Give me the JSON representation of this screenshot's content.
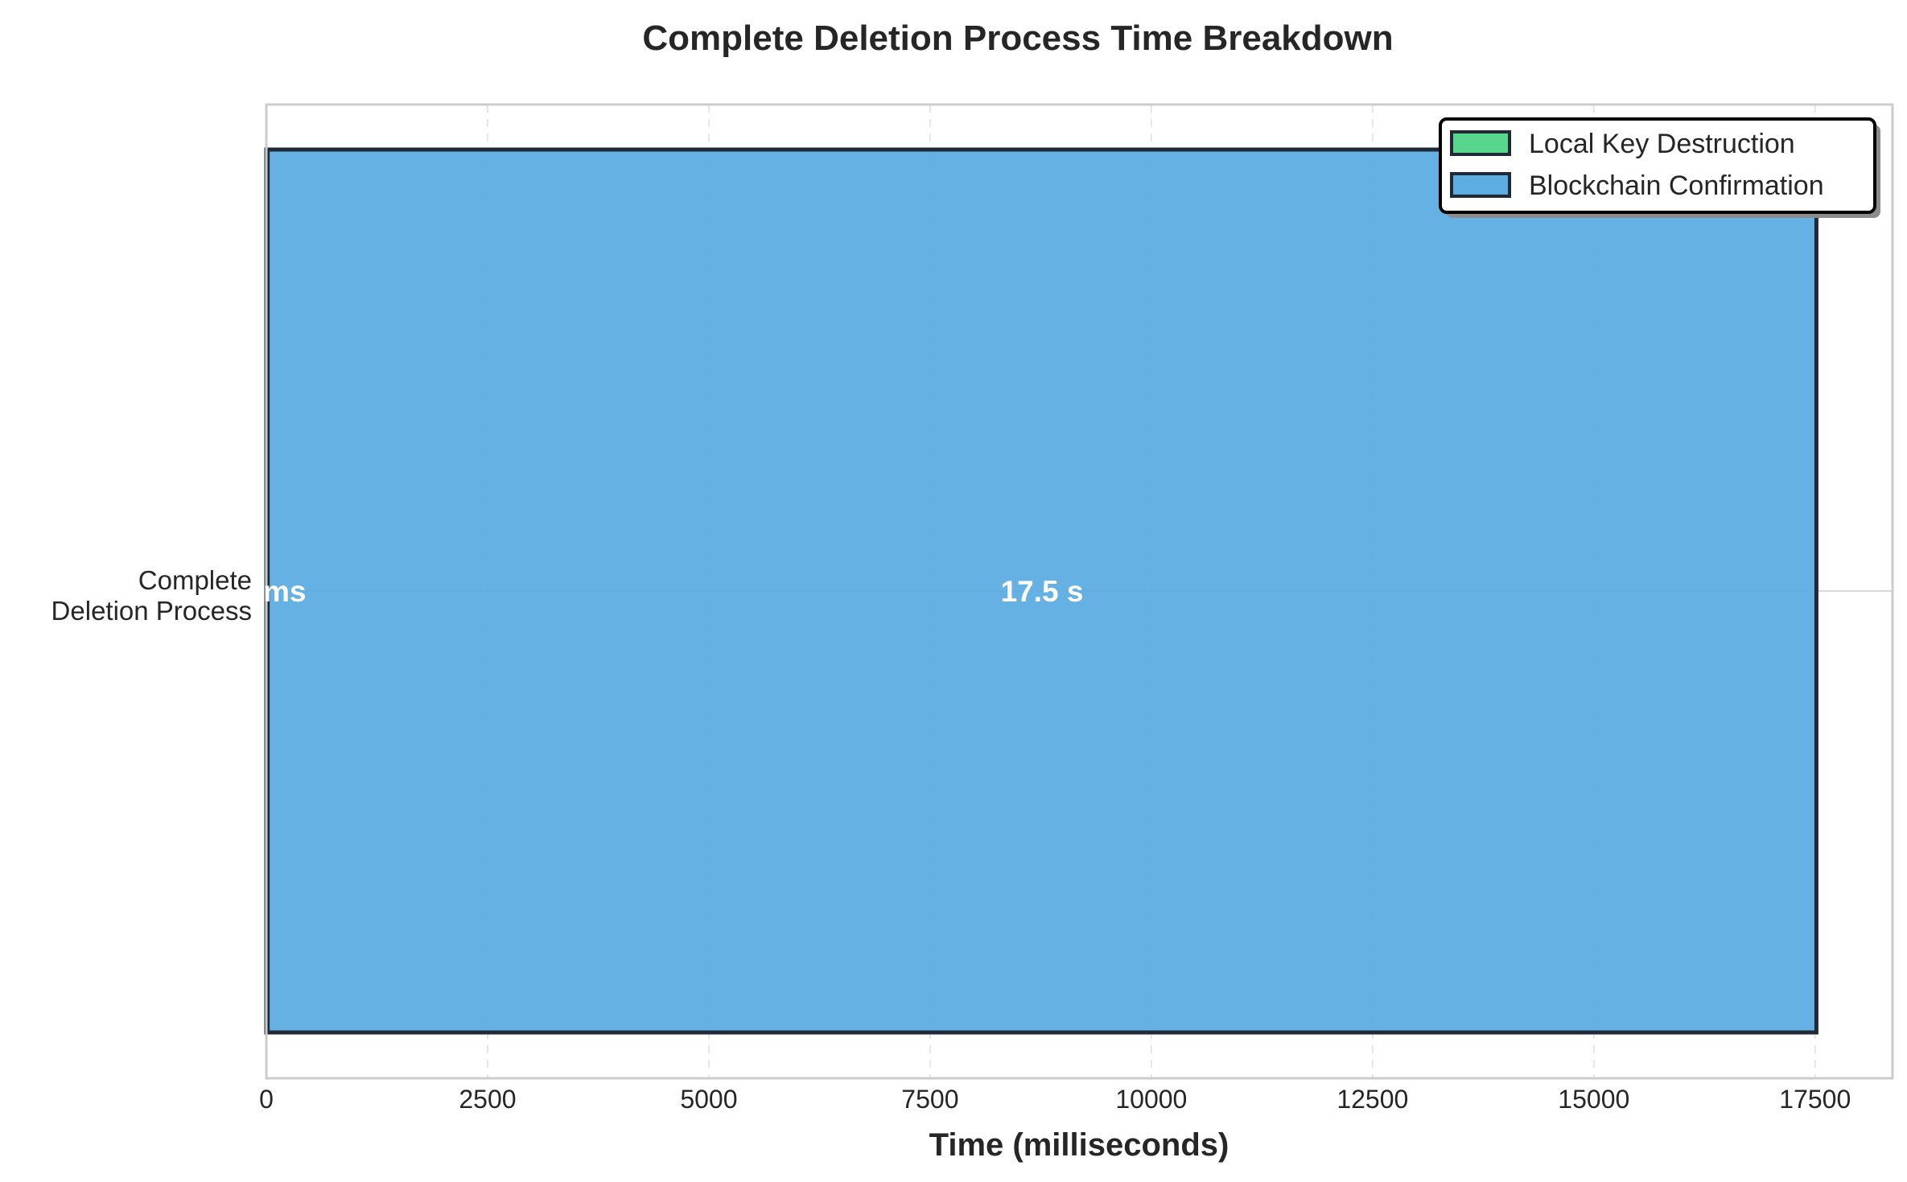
{
  "chart_data": {
    "type": "bar",
    "orientation": "horizontal",
    "stacked": true,
    "title": "Complete Deletion Process Time Breakdown",
    "xlabel": "Time (milliseconds)",
    "ylabel": "",
    "xlim": [
      0,
      18375
    ],
    "x_ticks": [
      "0",
      "2500",
      "5000",
      "7500",
      "10000",
      "12500",
      "15000",
      "17500"
    ],
    "categories": [
      "Complete\nDeletion Process"
    ],
    "series": [
      {
        "name": "Local Key Destruction",
        "values": [
          15
        ],
        "label": "ms",
        "color": "#58d68d"
      },
      {
        "name": "Blockchain Confirmation",
        "values": [
          17500
        ],
        "label": "17.5 s",
        "color": "#5dade2"
      }
    ],
    "grid": true,
    "legend_position": "top-right",
    "edge_color": "#1f2a36"
  }
}
